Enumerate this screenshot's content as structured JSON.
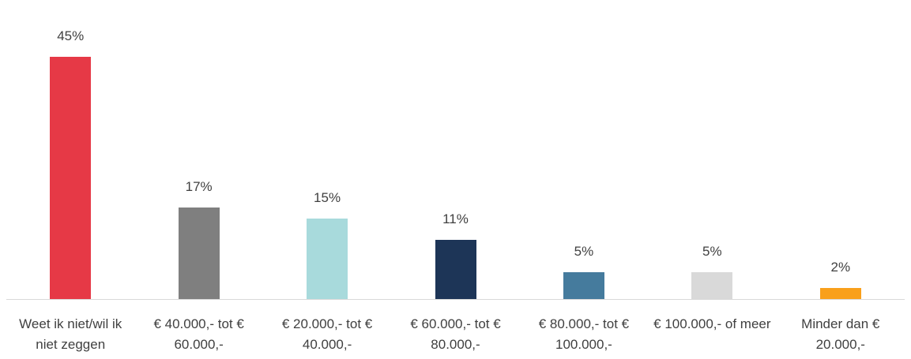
{
  "chart_data": {
    "type": "bar",
    "categories": [
      "Weet ik niet/wil ik niet zeggen",
      "€ 40.000,- tot € 60.000,-",
      "€ 20.000,- tot € 40.000,-",
      "€ 60.000,- tot € 80.000,-",
      "€ 80.000,- tot € 100.000,-",
      "€ 100.000,- of meer",
      "Minder dan € 20.000,-"
    ],
    "values": [
      45,
      17,
      15,
      11,
      5,
      5,
      2
    ],
    "value_labels": [
      "45%",
      "17%",
      "15%",
      "11%",
      "5%",
      "5%",
      "2%"
    ],
    "colors": [
      "#e63946",
      "#7f7f7f",
      "#a8dadc",
      "#1d3557",
      "#457b9d",
      "#d9d9d9",
      "#f9a01b"
    ]
  }
}
